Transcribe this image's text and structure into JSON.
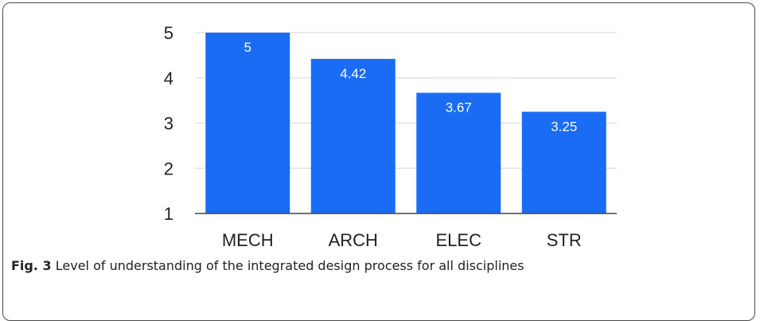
{
  "chart_data": {
    "type": "bar",
    "categories": [
      "MECH",
      "ARCH",
      "ELEC",
      "STR"
    ],
    "values": [
      5,
      4.42,
      3.67,
      3.25
    ],
    "data_labels": [
      "5",
      "4.42",
      "3.67",
      "3.25"
    ],
    "ylim": [
      1,
      5
    ],
    "yticks": [
      1,
      2,
      3,
      4,
      5
    ],
    "grid": true,
    "bar_color": "#1a6cf5",
    "grid_color": "#e3e3e3",
    "axis_color": "#444444"
  },
  "caption": {
    "label": "Fig. 3",
    "text": "Level of understanding of the integrated design process for all disciplines"
  }
}
